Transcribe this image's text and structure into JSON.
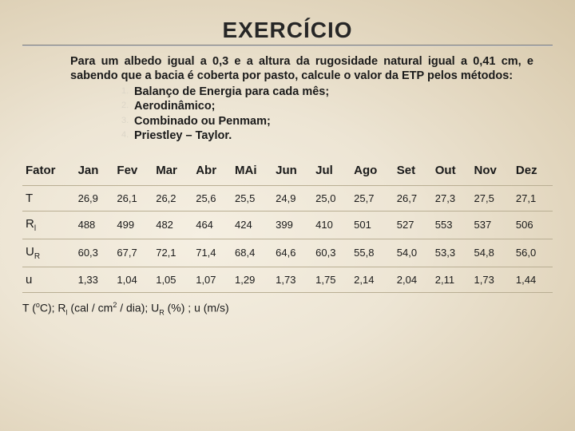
{
  "title": "EXERCÍCIO",
  "intro": "Para um albedo igual a 0,3 e a altura da rugosidade natural igual a 0,41 cm, e sabendo que a bacia é coberta por pasto, calcule o valor da ETP pelos métodos:",
  "items": [
    "Balanço de Energia para cada mês;",
    "Aerodinâmico;",
    "Combinado ou Penmam;",
    "Priestley – Taylor."
  ],
  "table": {
    "columns": [
      "Fator",
      "Jan",
      "Fev",
      "Mar",
      "Abr",
      "MAi",
      "Jun",
      "Jul",
      "Ago",
      "Set",
      "Out",
      "Nov",
      "Dez"
    ],
    "factors": [
      "T",
      "R<i>",
      "U<R>",
      "u"
    ],
    "factor_html": [
      "T",
      "R<sub>l</sub>",
      "U<sub>R</sub>",
      "u"
    ],
    "rows": [
      [
        "26,9",
        "26,1",
        "26,2",
        "25,6",
        "25,5",
        "24,9",
        "25,0",
        "25,7",
        "26,7",
        "27,3",
        "27,5",
        "27,1"
      ],
      [
        "488",
        "499",
        "482",
        "464",
        "424",
        "399",
        "410",
        "501",
        "527",
        "553",
        "537",
        "506"
      ],
      [
        "60,3",
        "67,7",
        "72,1",
        "71,4",
        "68,4",
        "64,6",
        "60,3",
        "55,8",
        "54,0",
        "53,3",
        "54,8",
        "56,0"
      ],
      [
        "1,33",
        "1,04",
        "1,05",
        "1,07",
        "1,29",
        "1,73",
        "1,75",
        "2,14",
        "2,04",
        "2,11",
        "1,73",
        "1,44"
      ]
    ]
  },
  "footnote_parts": {
    "t_prefix": "T (",
    "t_sup": "o",
    "t_suffix": "C); R",
    "rl_sub": "l",
    "rl_rest": " (cal / cm",
    "cm_sup": "2",
    "cm_rest": " / dia); U",
    "ur_sub": "R",
    "ur_rest": " (%) ; u (m/s)"
  }
}
